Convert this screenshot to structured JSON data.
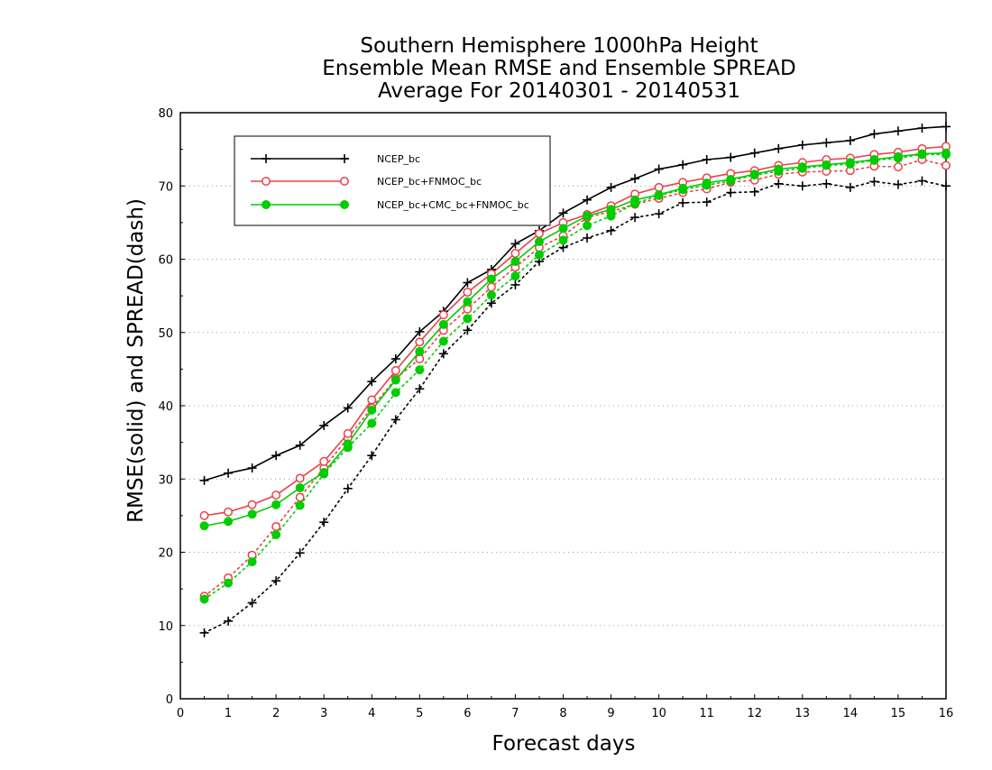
{
  "chart_data": {
    "type": "line",
    "title": [
      "Southern Hemisphere 1000hPa Height",
      "Ensemble Mean RMSE and Ensemble SPREAD",
      "Average For 20140301 - 20140531"
    ],
    "xlabel": "Forecast days",
    "ylabel": "RMSE(solid) and SPREAD(dash)",
    "xlim": [
      0,
      16
    ],
    "ylim": [
      0,
      80
    ],
    "xticks": [
      "0",
      "1",
      "2",
      "3",
      "4",
      "5",
      "6",
      "7",
      "8",
      "9",
      "10",
      "11",
      "12",
      "13",
      "14",
      "15",
      "16"
    ],
    "yticks": [
      "0",
      "10",
      "20",
      "30",
      "40",
      "50",
      "60",
      "70",
      "80"
    ],
    "grid": "horizontal dotted",
    "legend_position": "top-left",
    "x": [
      0.5,
      1,
      1.5,
      2,
      2.5,
      3,
      3.5,
      4,
      4.5,
      5,
      5.5,
      6,
      6.5,
      7,
      7.5,
      8,
      8.5,
      9,
      9.5,
      10,
      10.5,
      11,
      11.5,
      12,
      12.5,
      13,
      13.5,
      14,
      14.5,
      15,
      15.5,
      16
    ],
    "series": [
      {
        "name": "NCEP_bc",
        "color": "#000000",
        "marker": "plus",
        "rmse": [
          29.8,
          30.8,
          31.5,
          33.2,
          34.6,
          37.3,
          39.7,
          43.3,
          46.4,
          50.1,
          52.9,
          56.8,
          58.6,
          62.1,
          63.9,
          66.3,
          68.1,
          69.8,
          71.0,
          72.3,
          72.9,
          73.6,
          73.9,
          74.5,
          75.1,
          75.6,
          75.9,
          76.2,
          77.1,
          77.5,
          77.9,
          78.1
        ],
        "spread": [
          9.0,
          10.6,
          13.1,
          16.1,
          19.9,
          24.1,
          28.7,
          33.2,
          38.1,
          42.3,
          47.1,
          50.3,
          54.0,
          56.5,
          59.7,
          61.6,
          62.9,
          63.9,
          65.7,
          66.2,
          67.7,
          67.8,
          69.1,
          69.2,
          70.3,
          70.0,
          70.3,
          69.8,
          70.6,
          70.2,
          70.7,
          70.0
        ]
      },
      {
        "name": "NCEP_bc+FNMOC_bc",
        "color": "#e8424a",
        "marker": "open-circle",
        "rmse": [
          25.0,
          25.5,
          26.5,
          27.8,
          30.1,
          32.4,
          36.2,
          40.8,
          44.8,
          48.7,
          52.4,
          55.5,
          58.0,
          60.8,
          63.5,
          65.0,
          66.1,
          67.3,
          68.9,
          69.8,
          70.5,
          71.1,
          71.7,
          72.1,
          72.8,
          73.2,
          73.6,
          73.8,
          74.3,
          74.6,
          75.1,
          75.4
        ],
        "spread": [
          14.0,
          16.5,
          19.6,
          23.5,
          27.5,
          31.5,
          35.6,
          39.7,
          43.7,
          46.4,
          50.3,
          53.2,
          56.2,
          58.9,
          61.6,
          63.2,
          65.7,
          66.5,
          67.5,
          68.3,
          69.1,
          69.6,
          70.5,
          70.8,
          71.6,
          71.9,
          72.0,
          72.1,
          72.7,
          72.6,
          73.6,
          72.8
        ]
      },
      {
        "name": "NCEP_bc+CMC_bc+FNMOC_bc",
        "color": "#00cc00",
        "marker": "filled-circle",
        "rmse": [
          23.6,
          24.2,
          25.2,
          26.5,
          28.8,
          30.9,
          34.8,
          39.4,
          43.5,
          47.4,
          51.1,
          54.2,
          57.3,
          59.7,
          62.4,
          64.2,
          65.9,
          66.8,
          68.1,
          68.8,
          69.7,
          70.4,
          70.9,
          71.6,
          72.3,
          72.6,
          72.9,
          73.2,
          73.6,
          74.0,
          74.4,
          74.5
        ],
        "spread": [
          13.6,
          15.8,
          18.7,
          22.4,
          26.4,
          30.7,
          34.3,
          37.6,
          41.8,
          44.9,
          48.8,
          51.9,
          55.1,
          57.7,
          60.6,
          62.6,
          64.6,
          65.9,
          67.6,
          68.7,
          69.5,
          70.1,
          70.7,
          71.5,
          72.0,
          72.4,
          72.8,
          73.0,
          73.5,
          73.8,
          74.3,
          74.3
        ]
      }
    ]
  }
}
